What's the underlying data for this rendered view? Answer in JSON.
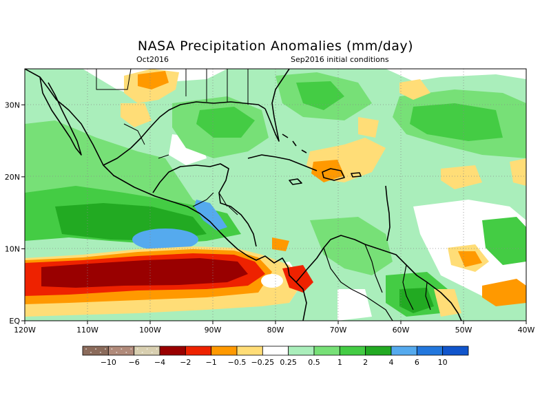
{
  "title": "NASA Precipitation Anomalies (mm/day)",
  "subtitle_left": "Oct2016",
  "subtitle_right": "Sep2016 initial conditions",
  "map": {
    "lon_range": [
      -120,
      -40
    ],
    "lat_range": [
      0,
      35
    ],
    "lon_ticks": [
      {
        "value": -120,
        "label": "120W"
      },
      {
        "value": -110,
        "label": "110W"
      },
      {
        "value": -100,
        "label": "100W"
      },
      {
        "value": -90,
        "label": "90W"
      },
      {
        "value": -80,
        "label": "80W"
      },
      {
        "value": -70,
        "label": "70W"
      },
      {
        "value": -60,
        "label": "60W"
      },
      {
        "value": -50,
        "label": "50W"
      },
      {
        "value": -40,
        "label": "40W"
      }
    ],
    "lat_ticks": [
      {
        "value": 0,
        "label": "EQ"
      },
      {
        "value": 10,
        "label": "10N"
      },
      {
        "value": 20,
        "label": "20N"
      },
      {
        "value": 30,
        "label": "30N"
      }
    ]
  },
  "colorbar": {
    "colors": [
      "#8b6b5b",
      "#b08a7a",
      "#d8cfb0",
      "#990000",
      "#ee2200",
      "#ff9900",
      "#ffdd77",
      "#ffffff",
      "#aaeebb",
      "#77e077",
      "#44cc44",
      "#22aa22",
      "#55aaee",
      "#2277dd",
      "#1155cc"
    ],
    "labels": [
      "-10",
      "-6",
      "-4",
      "-2",
      "-1",
      "-0.5",
      "-0.25",
      "0.25",
      "0.5",
      "1",
      "2",
      "4",
      "6",
      "10"
    ]
  },
  "colors": {
    "coast": "#000000",
    "grid": "#888888"
  }
}
